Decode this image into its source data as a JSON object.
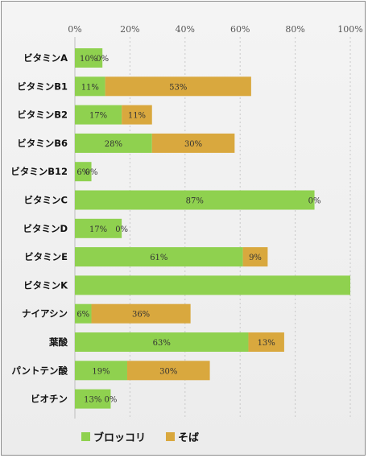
{
  "chart_data": {
    "type": "bar",
    "orientation": "horizontal",
    "stacked": true,
    "title": "",
    "xlabel": "",
    "ylabel": "",
    "xlim": [
      0,
      100
    ],
    "x_ticks": [
      "0%",
      "20%",
      "40%",
      "60%",
      "80%",
      "100%"
    ],
    "x_tick_values": [
      0,
      20,
      40,
      60,
      80,
      100
    ],
    "x_axis_position": "top",
    "grid": "vertical-dashed",
    "legend_position": "bottom-left",
    "categories": [
      "ビタミンA",
      "ビタミンB1",
      "ビタミンB2",
      "ビタミンB6",
      "ビタミンB12",
      "ビタミンC",
      "ビタミンD",
      "ビタミンE",
      "ビタミンK",
      "ナイアシン",
      "葉酸",
      "パントテン酸",
      "ビオチン"
    ],
    "series": [
      {
        "name": "ブロッコリ",
        "color": "#8fd14f",
        "values": [
          10,
          11,
          17,
          28,
          6,
          87,
          17,
          61,
          100,
          6,
          63,
          19,
          13
        ],
        "labels": [
          "10%",
          "11%",
          "17%",
          "28%",
          "6%",
          "87%",
          "17%",
          "61%",
          "",
          "6%",
          "63%",
          "19%",
          "13%"
        ]
      },
      {
        "name": "そば",
        "color": "#d9a83e",
        "values": [
          0,
          53,
          11,
          30,
          0,
          0,
          0,
          9,
          0,
          36,
          13,
          30,
          0
        ],
        "labels": [
          "0%",
          "53%",
          "11%",
          "30%",
          "0%",
          "0%",
          "0%",
          "9%",
          "",
          "36%",
          "13%",
          "30%",
          "0%"
        ]
      }
    ]
  }
}
